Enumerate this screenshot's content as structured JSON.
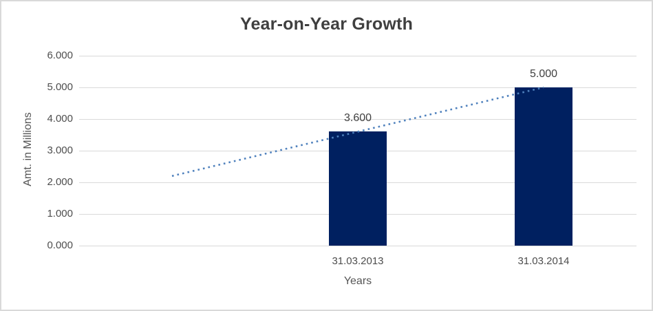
{
  "chart_data": {
    "type": "bar",
    "title": "Year-on-Year Growth",
    "xlabel": "Years",
    "ylabel": "Amt. in Millions",
    "categories": [
      "31.03.2013",
      "31.03.2014"
    ],
    "values": [
      3.6,
      5.0
    ],
    "data_labels": [
      "3.600",
      "5.000"
    ],
    "y_ticks": [
      "0.000",
      "1.000",
      "2.000",
      "3.000",
      "4.000",
      "5.000",
      "6.000"
    ],
    "ylim": [
      0,
      6
    ],
    "grid": true,
    "legend": "none",
    "trendline": {
      "style": "dotted",
      "points": [
        2.2,
        3.6,
        5.0
      ],
      "start_offset_periods": -1
    },
    "colors": {
      "bar": "#002060",
      "trendline": "#4F81BD",
      "gridline": "#D9D9D9",
      "frame_border": "#D9D9D9"
    }
  }
}
